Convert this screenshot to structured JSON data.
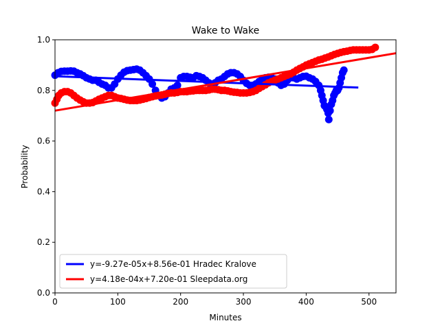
{
  "chart_data": {
    "type": "scatter",
    "title": "Wake to Wake",
    "xlabel": "Minutes",
    "ylabel": "Probability",
    "xlim": [
      0,
      543
    ],
    "ylim": [
      0.0,
      1.0
    ],
    "xticks": [
      0,
      100,
      200,
      300,
      400,
      500
    ],
    "yticks": [
      0.0,
      0.2,
      0.4,
      0.6,
      0.8,
      1.0
    ],
    "xtick_labels": [
      "0",
      "100",
      "200",
      "300",
      "400",
      "500"
    ],
    "ytick_labels": [
      "0.0",
      "0.2",
      "0.4",
      "0.6",
      "0.8",
      "1.0"
    ],
    "grid": false,
    "legend_position": "lower-left",
    "series": [
      {
        "name": "Hradec Kralove",
        "color": "#0000ff",
        "fit_label": "y=-9.27e-05x+8.56e-01 Hradec Kralove",
        "fit": {
          "slope": -9.27e-05,
          "intercept": 0.856,
          "x_range": [
            0,
            483
          ]
        },
        "points": [
          [
            0,
            0.86
          ],
          [
            5,
            0.87
          ],
          [
            10,
            0.875
          ],
          [
            15,
            0.876
          ],
          [
            20,
            0.876
          ],
          [
            25,
            0.877
          ],
          [
            30,
            0.876
          ],
          [
            35,
            0.87
          ],
          [
            40,
            0.865
          ],
          [
            45,
            0.858
          ],
          [
            50,
            0.85
          ],
          [
            55,
            0.845
          ],
          [
            60,
            0.84
          ],
          [
            65,
            0.84
          ],
          [
            70,
            0.832
          ],
          [
            75,
            0.825
          ],
          [
            80,
            0.82
          ],
          [
            85,
            0.81
          ],
          [
            90,
            0.81
          ],
          [
            95,
            0.825
          ],
          [
            100,
            0.845
          ],
          [
            105,
            0.86
          ],
          [
            110,
            0.872
          ],
          [
            115,
            0.878
          ],
          [
            120,
            0.88
          ],
          [
            125,
            0.882
          ],
          [
            130,
            0.884
          ],
          [
            135,
            0.88
          ],
          [
            140,
            0.87
          ],
          [
            145,
            0.858
          ],
          [
            150,
            0.845
          ],
          [
            155,
            0.825
          ],
          [
            160,
            0.8
          ],
          [
            165,
            0.78
          ],
          [
            170,
            0.77
          ],
          [
            175,
            0.775
          ],
          [
            180,
            0.79
          ],
          [
            185,
            0.805
          ],
          [
            190,
            0.81
          ],
          [
            195,
            0.82
          ],
          [
            200,
            0.85
          ],
          [
            205,
            0.855
          ],
          [
            210,
            0.855
          ],
          [
            215,
            0.852
          ],
          [
            220,
            0.85
          ],
          [
            225,
            0.858
          ],
          [
            230,
            0.855
          ],
          [
            235,
            0.85
          ],
          [
            240,
            0.84
          ],
          [
            245,
            0.83
          ],
          [
            250,
            0.825
          ],
          [
            255,
            0.83
          ],
          [
            260,
            0.84
          ],
          [
            265,
            0.845
          ],
          [
            270,
            0.855
          ],
          [
            275,
            0.865
          ],
          [
            280,
            0.87
          ],
          [
            285,
            0.87
          ],
          [
            290,
            0.865
          ],
          [
            295,
            0.855
          ],
          [
            300,
            0.84
          ],
          [
            305,
            0.828
          ],
          [
            310,
            0.82
          ],
          [
            315,
            0.82
          ],
          [
            320,
            0.826
          ],
          [
            325,
            0.835
          ],
          [
            330,
            0.845
          ],
          [
            335,
            0.85
          ],
          [
            340,
            0.852
          ],
          [
            345,
            0.85
          ],
          [
            350,
            0.845
          ],
          [
            355,
            0.83
          ],
          [
            360,
            0.82
          ],
          [
            365,
            0.825
          ],
          [
            370,
            0.84
          ],
          [
            375,
            0.85
          ],
          [
            380,
            0.85
          ],
          [
            385,
            0.845
          ],
          [
            390,
            0.85
          ],
          [
            395,
            0.855
          ],
          [
            400,
            0.856
          ],
          [
            405,
            0.85
          ],
          [
            410,
            0.845
          ],
          [
            415,
            0.835
          ],
          [
            420,
            0.82
          ],
          [
            423,
            0.8
          ],
          [
            425,
            0.78
          ],
          [
            427,
            0.76
          ],
          [
            429,
            0.74
          ],
          [
            431,
            0.735
          ],
          [
            433,
            0.725
          ],
          [
            435,
            0.71
          ],
          [
            436,
            0.685
          ],
          [
            438,
            0.72
          ],
          [
            440,
            0.745
          ],
          [
            442,
            0.76
          ],
          [
            444,
            0.78
          ],
          [
            446,
            0.79
          ],
          [
            448,
            0.8
          ],
          [
            450,
            0.8
          ],
          [
            452,
            0.81
          ],
          [
            454,
            0.83
          ],
          [
            456,
            0.85
          ],
          [
            458,
            0.87
          ],
          [
            460,
            0.88
          ]
        ]
      },
      {
        "name": "Sleepdata.org",
        "color": "#ff0000",
        "fit_label": "y=4.18e-04x+7.20e-01 Sleepdata.org",
        "fit": {
          "slope": 0.000418,
          "intercept": 0.72,
          "x_range": [
            0,
            543
          ]
        },
        "points": [
          [
            0,
            0.75
          ],
          [
            3,
            0.765
          ],
          [
            6,
            0.78
          ],
          [
            10,
            0.79
          ],
          [
            15,
            0.795
          ],
          [
            20,
            0.795
          ],
          [
            25,
            0.79
          ],
          [
            30,
            0.78
          ],
          [
            35,
            0.77
          ],
          [
            40,
            0.762
          ],
          [
            45,
            0.755
          ],
          [
            50,
            0.75
          ],
          [
            55,
            0.75
          ],
          [
            60,
            0.752
          ],
          [
            65,
            0.758
          ],
          [
            70,
            0.765
          ],
          [
            75,
            0.77
          ],
          [
            80,
            0.775
          ],
          [
            85,
            0.78
          ],
          [
            90,
            0.78
          ],
          [
            95,
            0.775
          ],
          [
            100,
            0.77
          ],
          [
            105,
            0.768
          ],
          [
            110,
            0.765
          ],
          [
            115,
            0.762
          ],
          [
            120,
            0.76
          ],
          [
            125,
            0.76
          ],
          [
            130,
            0.76
          ],
          [
            135,
            0.762
          ],
          [
            140,
            0.765
          ],
          [
            145,
            0.768
          ],
          [
            150,
            0.772
          ],
          [
            155,
            0.775
          ],
          [
            160,
            0.778
          ],
          [
            165,
            0.78
          ],
          [
            170,
            0.782
          ],
          [
            175,
            0.785
          ],
          [
            180,
            0.788
          ],
          [
            185,
            0.79
          ],
          [
            190,
            0.79
          ],
          [
            195,
            0.792
          ],
          [
            200,
            0.795
          ],
          [
            205,
            0.795
          ],
          [
            210,
            0.795
          ],
          [
            215,
            0.797
          ],
          [
            220,
            0.798
          ],
          [
            225,
            0.8
          ],
          [
            230,
            0.8
          ],
          [
            235,
            0.8
          ],
          [
            240,
            0.8
          ],
          [
            245,
            0.802
          ],
          [
            250,
            0.805
          ],
          [
            255,
            0.805
          ],
          [
            260,
            0.803
          ],
          [
            265,
            0.8
          ],
          [
            270,
            0.8
          ],
          [
            275,
            0.798
          ],
          [
            280,
            0.795
          ],
          [
            285,
            0.793
          ],
          [
            290,
            0.792
          ],
          [
            295,
            0.79
          ],
          [
            300,
            0.79
          ],
          [
            305,
            0.79
          ],
          [
            310,
            0.792
          ],
          [
            315,
            0.795
          ],
          [
            320,
            0.8
          ],
          [
            325,
            0.808
          ],
          [
            330,
            0.815
          ],
          [
            335,
            0.822
          ],
          [
            340,
            0.83
          ],
          [
            345,
            0.835
          ],
          [
            350,
            0.84
          ],
          [
            355,
            0.845
          ],
          [
            360,
            0.85
          ],
          [
            365,
            0.855
          ],
          [
            370,
            0.86
          ],
          [
            375,
            0.865
          ],
          [
            380,
            0.872
          ],
          [
            385,
            0.88
          ],
          [
            390,
            0.887
          ],
          [
            395,
            0.893
          ],
          [
            400,
            0.9
          ],
          [
            405,
            0.905
          ],
          [
            410,
            0.91
          ],
          [
            415,
            0.915
          ],
          [
            420,
            0.92
          ],
          [
            425,
            0.923
          ],
          [
            430,
            0.928
          ],
          [
            435,
            0.932
          ],
          [
            440,
            0.937
          ],
          [
            445,
            0.942
          ],
          [
            450,
            0.946
          ],
          [
            455,
            0.95
          ],
          [
            460,
            0.953
          ],
          [
            465,
            0.955
          ],
          [
            470,
            0.958
          ],
          [
            475,
            0.96
          ],
          [
            480,
            0.96
          ],
          [
            485,
            0.96
          ],
          [
            490,
            0.96
          ],
          [
            495,
            0.96
          ],
          [
            500,
            0.96
          ],
          [
            505,
            0.962
          ],
          [
            510,
            0.97
          ]
        ]
      }
    ]
  }
}
